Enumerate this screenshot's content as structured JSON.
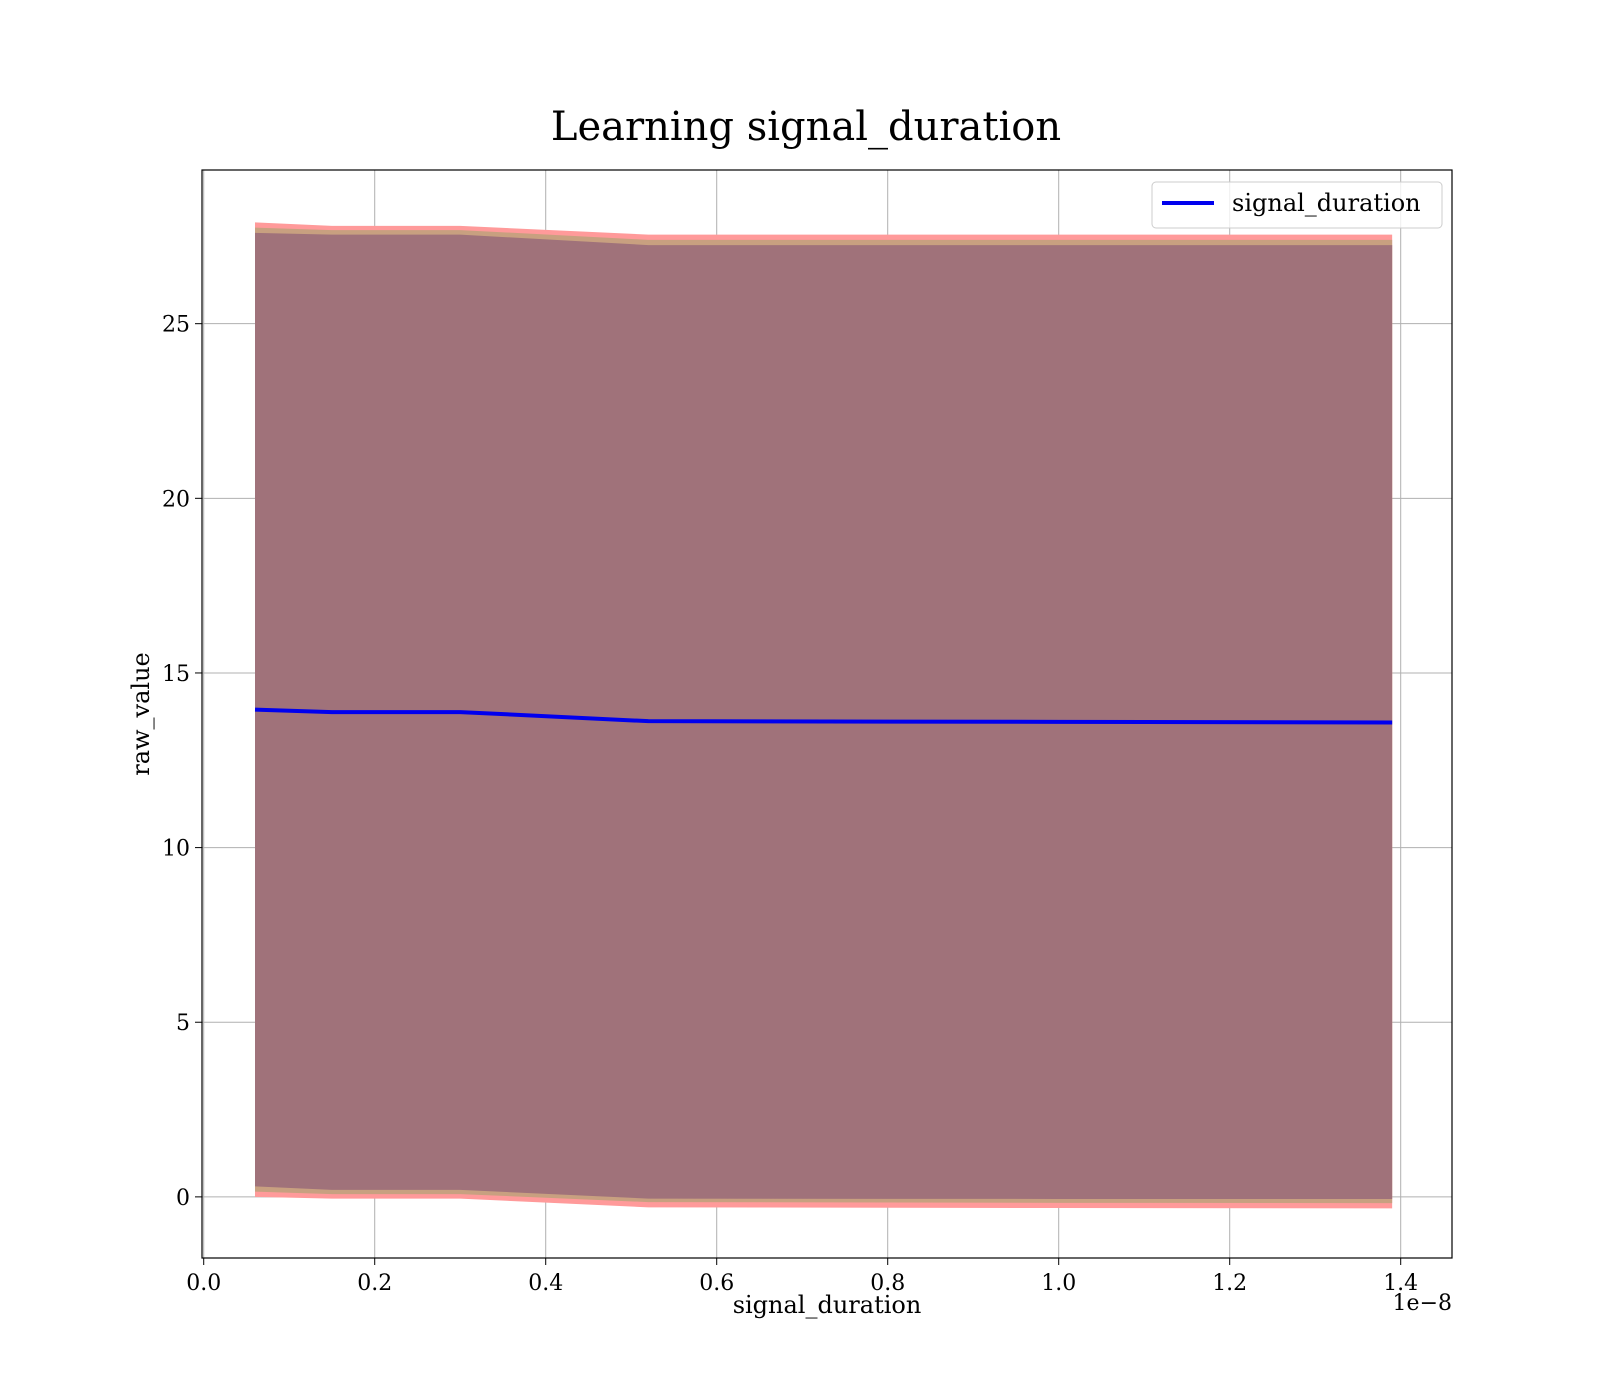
{
  "chart_data": {
    "type": "line",
    "title": "Learning signal_duration",
    "xlabel": "signal_duration",
    "ylabel": "raw_value",
    "x_offset_label": "1e−8",
    "x_scale_factor": 1e-08,
    "xlim": [
      -2e-11,
      1.46e-08
    ],
    "ylim": [
      -1.75,
      29.4
    ],
    "xticks": [
      0.0,
      2e-09,
      4e-09,
      6e-09,
      8e-09,
      1e-08,
      1.2e-08,
      1.4e-08
    ],
    "xtick_labels": [
      "0.0",
      "0.2",
      "0.4",
      "0.6",
      "0.8",
      "1.0",
      "1.2",
      "1.4"
    ],
    "yticks": [
      0,
      5,
      10,
      15,
      20,
      25
    ],
    "ytick_labels": [
      "0",
      "5",
      "10",
      "15",
      "20",
      "25"
    ],
    "grid": true,
    "legend_position": "top-right",
    "x": [
      6e-10,
      1.5e-09,
      3e-09,
      5.2e-09,
      1e-08,
      1.39e-08
    ],
    "series": [
      {
        "name": "signal_duration",
        "values": [
          13.95,
          13.88,
          13.88,
          13.62,
          13.6,
          13.58
        ],
        "color": "#0000ee"
      }
    ],
    "bands": [
      {
        "color": "#ff9a9a",
        "lower": [
          0.0,
          -0.05,
          -0.05,
          -0.3,
          -0.32,
          -0.33
        ],
        "upper": [
          27.9,
          27.8,
          27.8,
          27.55,
          27.55,
          27.55
        ]
      },
      {
        "color": "#c8a080",
        "lower": [
          0.15,
          0.08,
          0.08,
          -0.15,
          -0.17,
          -0.18
        ],
        "upper": [
          27.75,
          27.68,
          27.68,
          27.4,
          27.4,
          27.4
        ]
      },
      {
        "color": "#a0727a",
        "lower": [
          0.3,
          0.2,
          0.2,
          -0.05,
          -0.06,
          -0.06
        ],
        "upper": [
          27.6,
          27.55,
          27.55,
          27.25,
          27.25,
          27.25
        ]
      }
    ]
  }
}
